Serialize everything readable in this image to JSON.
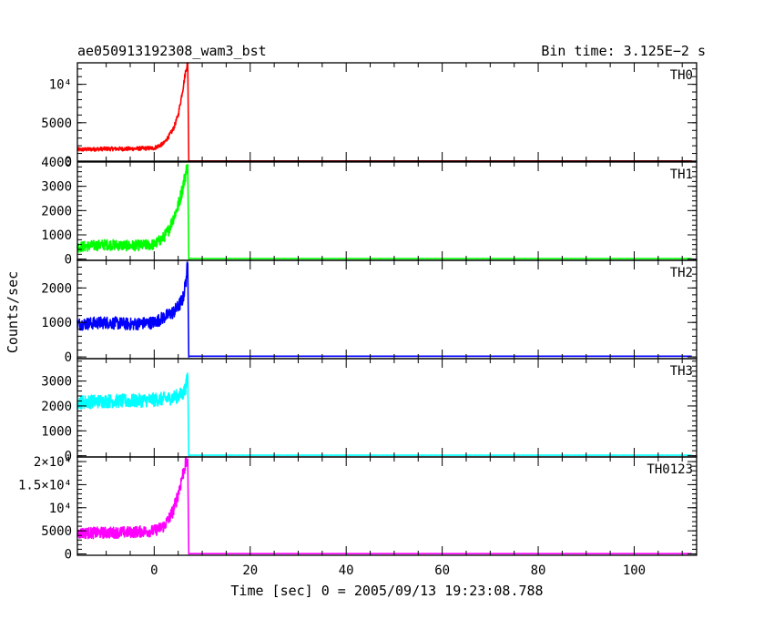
{
  "chart_data": {
    "type": "line",
    "title": "ae050913192308_wam3_bst",
    "subtitle": "Bin time: 3.125E−2 s",
    "xlabel": "Time [sec] 0 = 2005/09/13 19:23:08.788",
    "ylabel": "Counts/sec",
    "xlim": [
      -16,
      113
    ],
    "x_ticks": [
      0,
      20,
      40,
      60,
      80,
      100
    ],
    "x_tick_labels": [
      "0",
      "20",
      "40",
      "60",
      "80",
      "100"
    ],
    "grid": false,
    "panels": [
      {
        "label": "TH0",
        "color": "#ff0000",
        "ylim": [
          0,
          12800
        ],
        "y_ticks": [
          0,
          5000,
          10000
        ],
        "y_tick_labels": [
          "0",
          "5000",
          "10⁴"
        ],
        "series": [
          {
            "x": [
              -16,
              -10,
              -5,
              0,
              2,
              3,
              4,
              5,
              6,
              6.5,
              7,
              7.2,
              7.4,
              10,
              112
            ],
            "y": [
              1500,
              1600,
              1600,
              1700,
              2300,
              3200,
              4200,
              6000,
              9500,
              11500,
              13000,
              0,
              20,
              20,
              20
            ]
          }
        ]
      },
      {
        "label": "TH1",
        "color": "#00ff00",
        "ylim": [
          -50,
          4000
        ],
        "y_ticks": [
          0,
          1000,
          2000,
          3000,
          4000
        ],
        "y_tick_labels": [
          "0",
          "1000",
          "2000",
          "3000",
          "4000"
        ],
        "series": [
          {
            "x": [
              -16,
              -10,
              -5,
              0,
              2,
              3,
              4,
              5,
              6,
              6.5,
              7,
              7.2,
              7.4,
              10,
              112
            ],
            "y": [
              500,
              600,
              550,
              600,
              900,
              1200,
              1700,
              2200,
              3000,
              3500,
              3900,
              0,
              20,
              20,
              20
            ]
          }
        ]
      },
      {
        "label": "TH2",
        "color": "#0000ff",
        "ylim": [
          -50,
          2800
        ],
        "y_ticks": [
          0,
          1000,
          2000
        ],
        "y_tick_labels": [
          "0",
          "1000",
          "2000"
        ],
        "series": [
          {
            "x": [
              -16,
              -10,
              -5,
              0,
              2,
              4,
              5,
              6,
              6.5,
              7,
              7.2,
              7.4,
              10,
              112
            ],
            "y": [
              950,
              1000,
              950,
              1000,
              1150,
              1300,
              1450,
              1700,
              2100,
              2700,
              0,
              20,
              20,
              20
            ]
          }
        ]
      },
      {
        "label": "TH3",
        "color": "#00ffff",
        "ylim": [
          -50,
          3900
        ],
        "y_ticks": [
          0,
          1000,
          2000,
          3000
        ],
        "y_tick_labels": [
          "0",
          "1000",
          "2000",
          "3000"
        ],
        "series": [
          {
            "x": [
              -16,
              -10,
              -5,
              0,
              3,
              5,
              6,
              6.5,
              7,
              7.2,
              7.4,
              10,
              112
            ],
            "y": [
              2150,
              2200,
              2200,
              2250,
              2300,
              2400,
              2500,
              2700,
              3200,
              0,
              20,
              20,
              20
            ]
          }
        ]
      },
      {
        "label": "TH0123",
        "color": "#ff00ff",
        "ylim": [
          -300,
          21000
        ],
        "y_ticks": [
          0,
          5000,
          10000,
          15000,
          20000
        ],
        "y_tick_labels": [
          "0",
          "5000",
          "10⁴",
          "1.5×10⁴",
          "2×10⁴"
        ],
        "series": [
          {
            "x": [
              -16,
              -10,
              -5,
              0,
              2,
              3,
              4,
              5,
              6,
              6.5,
              7,
              7.2,
              7.4,
              10,
              112
            ],
            "y": [
              4500,
              4600,
              4700,
              5000,
              6000,
              7500,
              9500,
              13000,
              17500,
              19500,
              20500,
              0,
              50,
              50,
              50
            ]
          }
        ]
      }
    ]
  }
}
